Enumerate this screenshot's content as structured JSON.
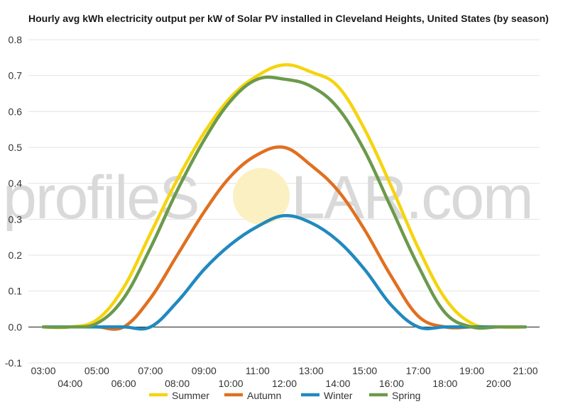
{
  "chart_data": {
    "type": "line",
    "title": "Hourly avg kWh electricity output per kW of Solar PV installed in Cleveland Heights, United States (by season)",
    "xlabel": "",
    "ylabel": "",
    "ylim": [
      -0.1,
      0.8
    ],
    "yticks": [
      "-0.1",
      "0.0",
      "0.1",
      "0.2",
      "0.3",
      "0.4",
      "0.5",
      "0.6",
      "0.7",
      "0.8"
    ],
    "categories": [
      "03:00",
      "04:00",
      "05:00",
      "06:00",
      "07:00",
      "08:00",
      "09:00",
      "10:00",
      "11:00",
      "12:00",
      "13:00",
      "14:00",
      "15:00",
      "16:00",
      "17:00",
      "18:00",
      "19:00",
      "20:00",
      "21:00"
    ],
    "grid": true,
    "legend_position": "bottom",
    "series": [
      {
        "name": "Summer",
        "color": "#f5d40f",
        "values": [
          0,
          0,
          0.02,
          0.11,
          0.26,
          0.41,
          0.54,
          0.64,
          0.7,
          0.73,
          0.71,
          0.67,
          0.55,
          0.39,
          0.22,
          0.08,
          0.01,
          0,
          0
        ]
      },
      {
        "name": "Autumn",
        "color": "#e07020",
        "values": [
          0,
          0,
          0,
          0,
          0.08,
          0.2,
          0.32,
          0.42,
          0.48,
          0.5,
          0.45,
          0.38,
          0.27,
          0.14,
          0.03,
          0,
          0,
          0,
          0
        ]
      },
      {
        "name": "Winter",
        "color": "#2189bf",
        "values": [
          0,
          0,
          0,
          0,
          0,
          0.07,
          0.16,
          0.23,
          0.28,
          0.31,
          0.29,
          0.24,
          0.16,
          0.06,
          0,
          0,
          0,
          0,
          0
        ]
      },
      {
        "name": "Spring",
        "color": "#6b9a4b",
        "values": [
          0,
          0,
          0.01,
          0.08,
          0.22,
          0.38,
          0.52,
          0.63,
          0.69,
          0.69,
          0.67,
          0.61,
          0.49,
          0.33,
          0.17,
          0.04,
          0,
          0,
          0
        ]
      }
    ]
  },
  "watermark": {
    "left": "profileS",
    "right": "LAR.com"
  }
}
